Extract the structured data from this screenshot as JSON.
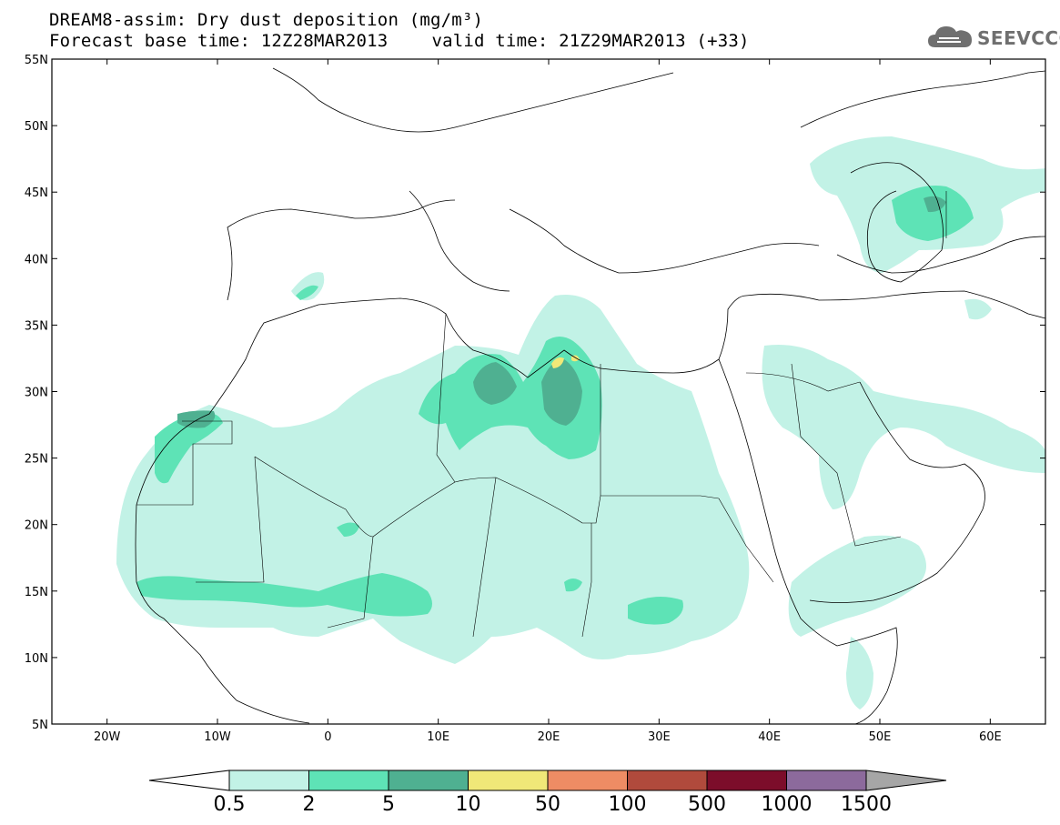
{
  "header": {
    "line1": "DREAM8-assim: Dry dust deposition (mg/m³)",
    "base_time": "Forecast base time: 12Z28MAR2013",
    "valid_time": "valid time: 21Z29MAR2013 (+33)"
  },
  "logo": {
    "text": "SEEVCCC",
    "icon": "cloud-icon"
  },
  "map": {
    "lon_range": [
      -25,
      65
    ],
    "lat_range": [
      5,
      55
    ],
    "lat_ticks": [
      "55N",
      "50N",
      "45N",
      "40N",
      "35N",
      "30N",
      "25N",
      "20N",
      "15N",
      "10N",
      "5N"
    ],
    "lon_ticks": [
      "20W",
      "10W",
      "0",
      "10E",
      "20E",
      "30E",
      "40E",
      "50E",
      "60E"
    ]
  },
  "colorbar": {
    "labels": [
      "0.5",
      "2",
      "5",
      "10",
      "50",
      "100",
      "500",
      "1000",
      "1500"
    ],
    "colors": [
      "#c2f2e6",
      "#5ee3b6",
      "#4fb091",
      "#f0e878",
      "#ee8c64",
      "#b04a3c",
      "#7c0d2a",
      "#8c6a9c"
    ],
    "under_color": "#ffffff",
    "over_color": "#a6a6a6"
  }
}
